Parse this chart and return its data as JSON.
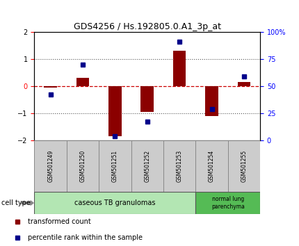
{
  "title": "GDS4256 / Hs.192805.0.A1_3p_at",
  "samples": [
    "GSM501249",
    "GSM501250",
    "GSM501251",
    "GSM501252",
    "GSM501253",
    "GSM501254",
    "GSM501255"
  ],
  "red_bars": [
    -0.05,
    0.3,
    -1.85,
    -0.95,
    1.3,
    -1.1,
    0.15
  ],
  "blue_dots": [
    -0.3,
    0.8,
    -1.85,
    -1.3,
    1.65,
    -0.85,
    0.35
  ],
  "ylim": [
    -2,
    2
  ],
  "yticks_left": [
    -2,
    -1,
    0,
    1,
    2
  ],
  "right_tick_positions": [
    -2,
    -1,
    0,
    1,
    2
  ],
  "right_tick_labels": [
    "0",
    "25",
    "50",
    "75",
    "100%"
  ],
  "bar_color": "#8B0000",
  "dot_color": "#00008B",
  "zero_line_color": "#CC0000",
  "dotted_line_color": "#555555",
  "group1_label": "caseous TB granulomas",
  "group2_label": "normal lung\nparenchyma",
  "cell_type_label": "cell type",
  "legend1": "transformed count",
  "legend2": "percentile rank within the sample",
  "bg_color": "#ffffff",
  "plot_bg_color": "#ffffff",
  "sample_box_color": "#cccccc",
  "group1_box_color": "#b3e6b3",
  "group2_box_color": "#55bb55",
  "n_group1": 5,
  "n_group2": 2
}
